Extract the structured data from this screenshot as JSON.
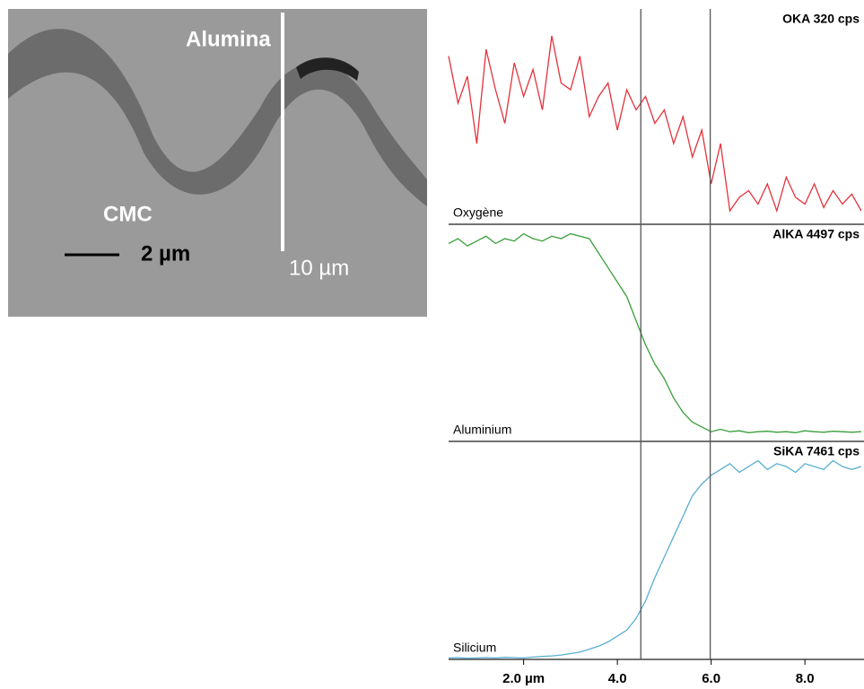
{
  "micrograph": {
    "labels": [
      "Alumina",
      "CMC",
      "2 µm",
      "10 µm"
    ]
  },
  "chart_data": {
    "type": "line",
    "x": [
      0.4,
      0.6,
      0.8,
      1.0,
      1.2,
      1.4,
      1.6,
      1.8,
      2.0,
      2.2,
      2.4,
      2.6,
      2.8,
      3.0,
      3.2,
      3.4,
      3.6,
      3.8,
      4.0,
      4.2,
      4.4,
      4.6,
      4.8,
      5.0,
      5.2,
      5.4,
      5.6,
      5.8,
      6.0,
      6.2,
      6.4,
      6.6,
      6.8,
      7.0,
      7.2,
      7.4,
      7.6,
      7.8,
      8.0,
      8.2,
      8.4,
      8.6,
      8.8,
      9.0,
      9.2
    ],
    "xlim": [
      0.4,
      9.26
    ],
    "xticks": [
      {
        "value": 2,
        "label": "2.0 µm"
      },
      {
        "value": 4,
        "label": "4.0"
      },
      {
        "value": 6,
        "label": "6.0"
      },
      {
        "value": 8,
        "label": "8.0"
      }
    ],
    "cursors": [
      4.5,
      5.98
    ],
    "series": [
      {
        "name": "Oxygène",
        "label": "OKA 320 cps",
        "color": "#e4323c",
        "ylim": [
          0,
          320
        ],
        "values": [
          250,
          180,
          220,
          120,
          260,
          200,
          150,
          240,
          190,
          230,
          170,
          280,
          210,
          200,
          250,
          160,
          190,
          210,
          140,
          200,
          170,
          190,
          150,
          170,
          120,
          160,
          100,
          140,
          60,
          120,
          20,
          40,
          50,
          30,
          60,
          20,
          70,
          40,
          30,
          60,
          25,
          50,
          30,
          45,
          20
        ]
      },
      {
        "name": "Aluminium",
        "label": "AlKA 4497 cps",
        "color": "#3a9e3a",
        "ylim": [
          0,
          4497
        ],
        "values": [
          4100,
          4200,
          4050,
          4150,
          4250,
          4100,
          4200,
          4150,
          4300,
          4200,
          4150,
          4250,
          4200,
          4300,
          4250,
          4200,
          3900,
          3600,
          3300,
          3000,
          2500,
          2000,
          1600,
          1300,
          900,
          600,
          400,
          300,
          200,
          250,
          200,
          220,
          180,
          200,
          210,
          190,
          200,
          180,
          220,
          200,
          190,
          210,
          200,
          190,
          200
        ]
      },
      {
        "name": "Silicium",
        "label": "SiKA 7461 cps",
        "color": "#5aaed0",
        "ylim": [
          0,
          7461
        ],
        "values": [
          50,
          60,
          40,
          50,
          60,
          50,
          70,
          60,
          50,
          80,
          100,
          120,
          150,
          200,
          250,
          350,
          450,
          600,
          800,
          1000,
          1400,
          2000,
          2800,
          3500,
          4200,
          4900,
          5600,
          6000,
          6300,
          6500,
          6700,
          6400,
          6600,
          6800,
          6500,
          6700,
          6600,
          6400,
          6700,
          6600,
          6500,
          6800,
          6600,
          6500,
          6600
        ]
      }
    ]
  }
}
